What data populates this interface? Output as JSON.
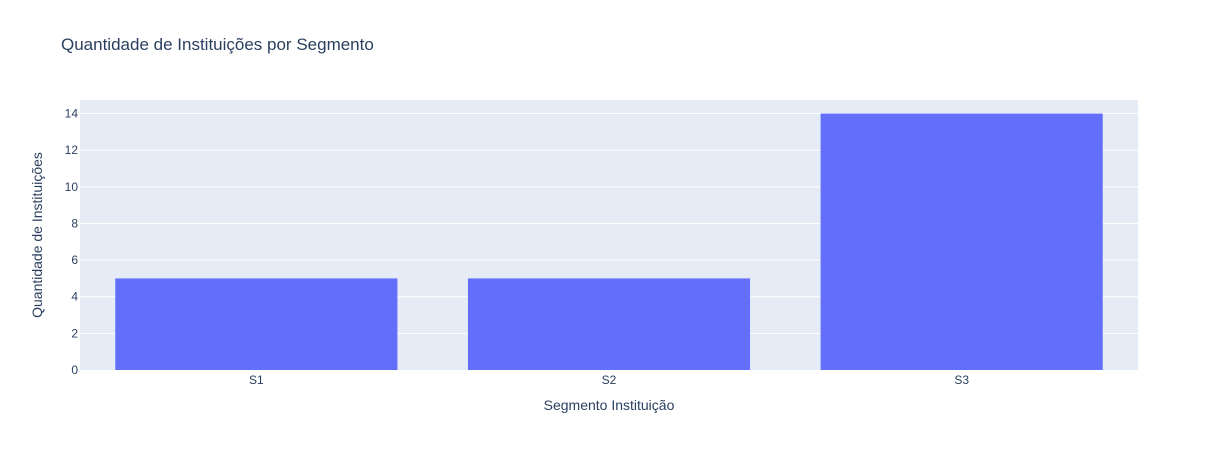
{
  "chart_data": {
    "type": "bar",
    "title": "Quantidade de Instituições por Segmento",
    "xlabel": "Segmento Instituição",
    "ylabel": "Quantidade de Instituições",
    "categories": [
      "S1",
      "S2",
      "S3"
    ],
    "values": [
      5,
      5,
      14
    ],
    "ylim": [
      0,
      14.74
    ],
    "yticks": [
      0,
      2,
      4,
      6,
      8,
      10,
      12,
      14
    ],
    "grid": true,
    "legend": "none",
    "colors": {
      "bar": "#636efa",
      "plot_background": "#e5ecf6",
      "gridline": "#ffffff",
      "text": "#2a3f5f"
    }
  }
}
